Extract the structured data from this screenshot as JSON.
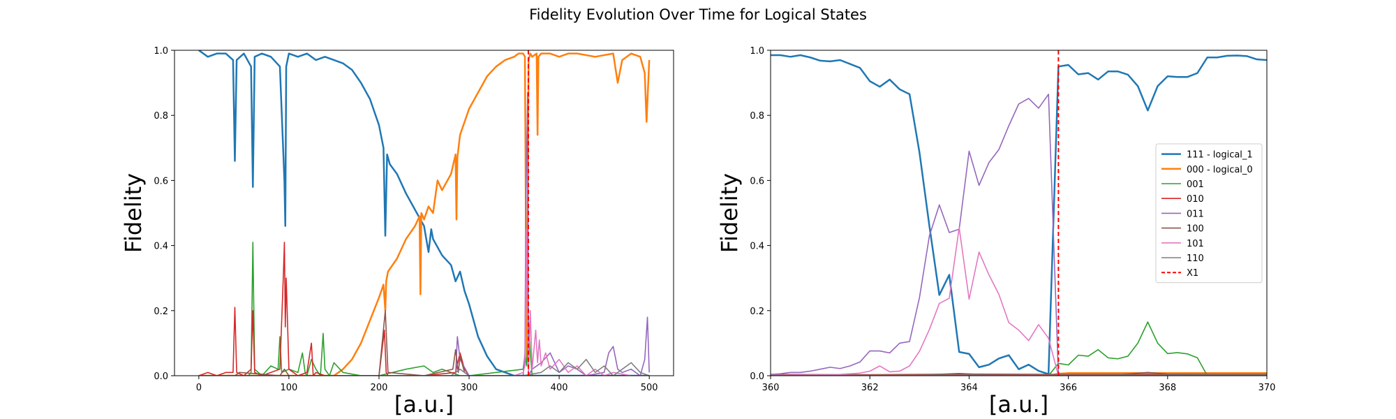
{
  "figure": {
    "title": "Fidelity Evolution Over Time for Logical States"
  },
  "chart_data": [
    {
      "type": "line",
      "title": "",
      "xlabel": "[a.u.]",
      "ylabel": "Fidelity",
      "xlim": [
        -27,
        527
      ],
      "ylim": [
        0,
        1
      ],
      "xticks": [
        0,
        100,
        200,
        300,
        400,
        500
      ],
      "yticks": [
        0.0,
        0.2,
        0.4,
        0.6,
        0.8,
        1.0
      ],
      "grid": false,
      "legend": null,
      "vline": {
        "name": "X1",
        "x": 365.8,
        "color": "#ff0000",
        "style": "dashed"
      },
      "series": [
        {
          "name": "111 - logical_1",
          "color": "#1f77b4",
          "width": 2.5,
          "x": [
            0,
            10,
            20,
            30,
            38,
            40,
            42,
            50,
            58,
            60,
            62,
            70,
            80,
            90,
            95,
            96,
            97,
            100,
            110,
            120,
            130,
            140,
            150,
            160,
            170,
            180,
            190,
            200,
            205,
            207,
            209,
            212,
            220,
            230,
            240,
            250,
            255,
            258,
            260,
            270,
            280,
            285,
            290,
            295,
            300,
            310,
            320,
            330,
            340,
            350,
            360,
            365,
            370,
            380,
            400,
            450,
            500
          ],
          "y": [
            1.0,
            0.98,
            0.99,
            0.99,
            0.97,
            0.66,
            0.97,
            0.99,
            0.95,
            0.58,
            0.98,
            0.99,
            0.98,
            0.95,
            0.6,
            0.46,
            0.95,
            0.99,
            0.98,
            0.99,
            0.97,
            0.98,
            0.97,
            0.96,
            0.94,
            0.9,
            0.85,
            0.77,
            0.7,
            0.43,
            0.68,
            0.65,
            0.62,
            0.56,
            0.51,
            0.46,
            0.38,
            0.45,
            0.42,
            0.37,
            0.34,
            0.29,
            0.32,
            0.26,
            0.22,
            0.12,
            0.06,
            0.02,
            0.01,
            0.0,
            0.0,
            0.0,
            0.0,
            0.0,
            0.0,
            0.0,
            0.0
          ]
        },
        {
          "name": "000 - logical_0",
          "color": "#ff7f0e",
          "width": 2.5,
          "x": [
            0,
            100,
            150,
            160,
            170,
            180,
            190,
            200,
            205,
            207,
            208,
            210,
            220,
            230,
            240,
            245,
            246,
            247,
            250,
            255,
            260,
            265,
            270,
            280,
            285,
            286,
            287,
            290,
            295,
            300,
            310,
            320,
            330,
            340,
            350,
            355,
            360,
            362,
            363,
            364,
            365,
            366,
            368,
            370,
            375,
            376,
            377,
            380,
            390,
            400,
            410,
            420,
            440,
            460,
            465,
            470,
            480,
            490,
            495,
            497,
            500
          ],
          "y": [
            0.0,
            0.0,
            0.0,
            0.02,
            0.05,
            0.1,
            0.17,
            0.24,
            0.28,
            0.2,
            0.29,
            0.32,
            0.36,
            0.42,
            0.46,
            0.49,
            0.25,
            0.5,
            0.48,
            0.52,
            0.5,
            0.6,
            0.57,
            0.62,
            0.68,
            0.48,
            0.67,
            0.74,
            0.78,
            0.82,
            0.87,
            0.92,
            0.95,
            0.97,
            0.98,
            0.99,
            0.99,
            0.98,
            0.5,
            0.05,
            0.4,
            0.97,
            0.99,
            0.98,
            0.99,
            0.74,
            0.98,
            0.99,
            0.99,
            0.98,
            0.99,
            0.99,
            0.98,
            0.99,
            0.9,
            0.97,
            0.99,
            0.98,
            0.93,
            0.78,
            0.97
          ]
        },
        {
          "name": "001",
          "color": "#2ca02c",
          "width": 1.6,
          "x": [
            0,
            20,
            40,
            55,
            58,
            60,
            62,
            70,
            80,
            88,
            90,
            92,
            100,
            110,
            115,
            118,
            120,
            125,
            130,
            135,
            138,
            140,
            145,
            150,
            160,
            180,
            200,
            230,
            250,
            260,
            270,
            290,
            300,
            360,
            362,
            364,
            366,
            368,
            370,
            380,
            400,
            500
          ],
          "y": [
            0,
            0,
            0,
            0,
            0.01,
            0.41,
            0.02,
            0.0,
            0.03,
            0.02,
            0.12,
            0.01,
            0.02,
            0.01,
            0.07,
            0.01,
            0.0,
            0.05,
            0.02,
            0.0,
            0.13,
            0.02,
            0.0,
            0.04,
            0.01,
            0.0,
            0.0,
            0.02,
            0.03,
            0.01,
            0.02,
            0.0,
            0.0,
            0.02,
            0.06,
            0.03,
            0.17,
            0.07,
            0.0,
            0.0,
            0.0,
            0.0
          ]
        },
        {
          "name": "010",
          "color": "#d62728",
          "width": 1.6,
          "x": [
            0,
            10,
            20,
            30,
            38,
            40,
            42,
            50,
            58,
            60,
            62,
            70,
            80,
            90,
            94,
            95,
            96,
            97,
            100,
            110,
            120,
            125,
            127,
            130,
            140,
            150,
            200,
            206,
            208,
            210,
            250,
            285,
            290,
            295,
            300,
            500
          ],
          "y": [
            0,
            0.01,
            0,
            0.01,
            0.01,
            0.21,
            0.01,
            0,
            0.02,
            0.2,
            0.01,
            0,
            0.01,
            0.02,
            0.32,
            0.41,
            0.15,
            0.3,
            0.02,
            0.0,
            0.01,
            0.1,
            0.0,
            0.01,
            0.0,
            0.0,
            0.0,
            0.14,
            0.01,
            0.0,
            0.0,
            0.01,
            0.07,
            0.02,
            0.0,
            0.0
          ]
        },
        {
          "name": "011",
          "color": "#9467bd",
          "width": 1.6,
          "x": [
            0,
            280,
            285,
            287,
            290,
            300,
            340,
            350,
            360,
            362,
            363,
            364,
            365,
            366,
            370,
            380,
            390,
            400,
            410,
            420,
            430,
            450,
            455,
            460,
            465,
            470,
            480,
            490,
            495,
            498,
            500
          ],
          "y": [
            0,
            0,
            0.0,
            0.12,
            0.05,
            0.0,
            0.0,
            0.0,
            0.0,
            0.07,
            0.52,
            0.69,
            0.87,
            0.0,
            0.02,
            0.04,
            0.07,
            0.01,
            0.03,
            0.02,
            0.0,
            0.01,
            0.07,
            0.09,
            0.02,
            0.01,
            0.02,
            0.0,
            0.05,
            0.18,
            0.01
          ]
        },
        {
          "name": "100",
          "color": "#8c564b",
          "width": 1.6,
          "x": [
            0,
            40,
            45,
            90,
            95,
            100,
            200,
            207,
            210,
            250,
            282,
            285,
            288,
            290,
            295,
            300,
            500
          ],
          "y": [
            0,
            0,
            0.01,
            0,
            0.02,
            0.0,
            0,
            0.2,
            0.01,
            0,
            0.02,
            0.08,
            0.01,
            0.06,
            0.01,
            0,
            0
          ]
        },
        {
          "name": "101",
          "color": "#e377c2",
          "width": 1.6,
          "x": [
            0,
            350,
            360,
            362,
            363.5,
            364,
            365,
            366,
            368,
            370,
            374,
            376,
            378,
            380,
            385,
            390,
            400,
            410,
            420,
            430,
            440,
            450,
            460,
            480,
            500
          ],
          "y": [
            0,
            0,
            0.01,
            0.03,
            0.45,
            0.3,
            0.12,
            0.0,
            0.2,
            0.02,
            0.14,
            0.04,
            0.11,
            0.03,
            0.07,
            0.02,
            0.05,
            0.01,
            0.03,
            0.0,
            0.02,
            0.0,
            0.01,
            0.0,
            0.0
          ]
        },
        {
          "name": "110",
          "color": "#7f7f7f",
          "width": 1.6,
          "x": [
            0,
            280,
            290,
            300,
            360,
            380,
            390,
            400,
            410,
            420,
            430,
            440,
            450,
            460,
            470,
            480,
            490,
            500
          ],
          "y": [
            0,
            0,
            0.02,
            0,
            0,
            0.01,
            0.03,
            0.01,
            0.04,
            0.02,
            0.05,
            0.01,
            0.03,
            0.0,
            0.02,
            0.04,
            0.01,
            0.0
          ]
        }
      ]
    },
    {
      "type": "line",
      "title": "",
      "xlabel": "[a.u.]",
      "ylabel": "Fidelity",
      "xlim": [
        360,
        370
      ],
      "ylim": [
        0,
        1
      ],
      "xticks": [
        360,
        362,
        364,
        366,
        368,
        370
      ],
      "yticks": [
        0.0,
        0.2,
        0.4,
        0.6,
        0.8,
        1.0
      ],
      "grid": false,
      "legend": "right",
      "vline": {
        "name": "X1",
        "x": 365.8,
        "color": "#ff0000",
        "style": "dashed"
      },
      "series": [
        {
          "name": "111 - logical_1",
          "color": "#1f77b4",
          "width": 2.5,
          "x": [
            360,
            360.2,
            360.4,
            360.6,
            360.8,
            361,
            361.2,
            361.4,
            361.6,
            361.8,
            362,
            362.2,
            362.4,
            362.6,
            362.8,
            363,
            363.2,
            363.4,
            363.6,
            363.8,
            364,
            364.2,
            364.4,
            364.6,
            364.8,
            365,
            365.2,
            365.4,
            365.6,
            365.8,
            366,
            366.2,
            366.4,
            366.6,
            366.8,
            367,
            367.2,
            367.4,
            367.6,
            367.8,
            368,
            368.2,
            368.4,
            368.6,
            368.8,
            369,
            369.2,
            369.4,
            369.6,
            369.8,
            370
          ],
          "y": [
            0.985,
            0.985,
            0.98,
            0.985,
            0.978,
            0.968,
            0.966,
            0.97,
            0.958,
            0.946,
            0.905,
            0.888,
            0.91,
            0.88,
            0.865,
            0.686,
            0.46,
            0.248,
            0.31,
            0.073,
            0.067,
            0.026,
            0.034,
            0.053,
            0.063,
            0.02,
            0.034,
            0.015,
            0.005,
            0.95,
            0.955,
            0.926,
            0.93,
            0.91,
            0.935,
            0.935,
            0.925,
            0.89,
            0.815,
            0.89,
            0.92,
            0.918,
            0.918,
            0.93,
            0.978,
            0.978,
            0.983,
            0.984,
            0.982,
            0.972,
            0.97
          ]
        },
        {
          "name": "000 - logical_0",
          "color": "#ff7f0e",
          "width": 2.5,
          "x": [
            360,
            365.6,
            365.8,
            366,
            370
          ],
          "y": [
            0.0,
            0.0,
            0.006,
            0.008,
            0.008
          ]
        },
        {
          "name": "001",
          "color": "#2ca02c",
          "width": 1.6,
          "x": [
            360,
            365.6,
            365.8,
            366,
            366.2,
            366.4,
            366.6,
            366.8,
            367,
            367.2,
            367.4,
            367.6,
            367.8,
            368,
            368.2,
            368.4,
            368.6,
            368.8,
            369,
            370
          ],
          "y": [
            0,
            0,
            0.038,
            0.033,
            0.063,
            0.06,
            0.08,
            0.055,
            0.052,
            0.06,
            0.1,
            0.165,
            0.1,
            0.068,
            0.071,
            0.067,
            0.055,
            0.0,
            0.0,
            0.0
          ]
        },
        {
          "name": "010",
          "color": "#d62728",
          "width": 1.6,
          "x": [
            360,
            362,
            364,
            366,
            368,
            370
          ],
          "y": [
            0.004,
            0.003,
            0.005,
            0.004,
            0.004,
            0.004
          ]
        },
        {
          "name": "011",
          "color": "#9467bd",
          "width": 1.6,
          "x": [
            360,
            360.2,
            360.4,
            360.6,
            360.8,
            361,
            361.2,
            361.4,
            361.6,
            361.8,
            362,
            362.2,
            362.4,
            362.6,
            362.8,
            363,
            363.2,
            363.4,
            363.6,
            363.8,
            364,
            364.2,
            364.4,
            364.6,
            364.8,
            365,
            365.2,
            365.4,
            365.6,
            365.8,
            366,
            370
          ],
          "y": [
            0.004,
            0.006,
            0.01,
            0.01,
            0.014,
            0.02,
            0.026,
            0.022,
            0.03,
            0.042,
            0.076,
            0.076,
            0.07,
            0.1,
            0.105,
            0.24,
            0.43,
            0.525,
            0.44,
            0.45,
            0.69,
            0.585,
            0.655,
            0.695,
            0.768,
            0.835,
            0.852,
            0.822,
            0.865,
            0.0,
            0.0,
            0.0
          ]
        },
        {
          "name": "100",
          "color": "#8c564b",
          "width": 1.6,
          "x": [
            360,
            363,
            363.8,
            364.2,
            365,
            366,
            367,
            367.6,
            368,
            369,
            370
          ],
          "y": [
            0.002,
            0.002,
            0.007,
            0.004,
            0.002,
            0.002,
            0.003,
            0.01,
            0.005,
            0.004,
            0.004
          ]
        },
        {
          "name": "101",
          "color": "#e377c2",
          "width": 1.6,
          "x": [
            360,
            361,
            361.4,
            361.8,
            362,
            362.2,
            362.4,
            362.6,
            362.8,
            363,
            363.2,
            363.4,
            363.6,
            363.8,
            364,
            364.2,
            364.4,
            364.6,
            364.8,
            365,
            365.2,
            365.4,
            365.6,
            365.8,
            366,
            370
          ],
          "y": [
            0.002,
            0.003,
            0.004,
            0.008,
            0.014,
            0.03,
            0.012,
            0.014,
            0.03,
            0.075,
            0.142,
            0.222,
            0.238,
            0.455,
            0.235,
            0.38,
            0.31,
            0.25,
            0.163,
            0.14,
            0.108,
            0.157,
            0.115,
            0.0,
            0.0,
            0.0
          ]
        },
        {
          "name": "110",
          "color": "#7f7f7f",
          "width": 1.6,
          "x": [
            360,
            364,
            366,
            370
          ],
          "y": [
            0.001,
            0.002,
            0.002,
            0.002
          ]
        }
      ]
    }
  ]
}
